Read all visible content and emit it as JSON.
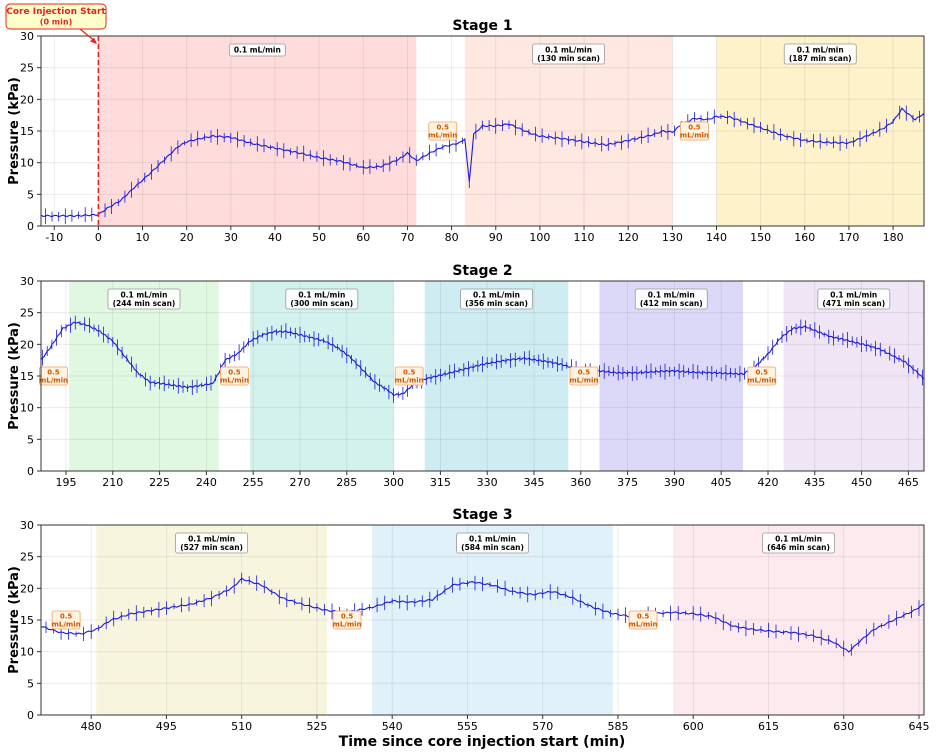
{
  "figure": {
    "xlabel": "Time since core injection start (min)",
    "core_annotation": {
      "line1": "Core Injection Start",
      "line2": "(0 min)",
      "x": 0
    }
  },
  "colors": {
    "trace": "#1a1adb",
    "core_line": "#e8231f",
    "rate_fill": "#fff3e0",
    "rate_text": "#d35400",
    "rate_border": "#f0a060"
  },
  "chart_data": [
    {
      "type": "line",
      "title": "Stage 1",
      "ylabel": "Pressure (kPa)",
      "xlim": [
        -13,
        187
      ],
      "ylim": [
        0,
        30
      ],
      "xticks": [
        -10,
        0,
        10,
        20,
        30,
        40,
        50,
        60,
        70,
        80,
        90,
        100,
        110,
        120,
        130,
        140,
        150,
        160,
        170,
        180
      ],
      "yticks": [
        0,
        5,
        10,
        15,
        20,
        25,
        30
      ],
      "grid": true,
      "regions": [
        {
          "x0": 0,
          "x1": 72,
          "color": "#ffd6d6",
          "label1": "0.1 mL/min",
          "label2": ""
        },
        {
          "x0": 83,
          "x1": 130,
          "color": "#ffe4da",
          "label1": "0.1 mL/min",
          "label2": "(130 min scan)"
        },
        {
          "x0": 140,
          "x1": 187,
          "color": "#fdf0c0",
          "label1": "0.1 mL/min",
          "label2": "(187 min scan)"
        }
      ],
      "rate_labels": [
        {
          "x": 78,
          "y": 15,
          "line1": "0.5",
          "line2": "mL/min"
        },
        {
          "x": 135,
          "y": 15,
          "line1": "0.5",
          "line2": "mL/min"
        }
      ],
      "series": [
        {
          "x": [
            -13,
            -5,
            0,
            2,
            5,
            8,
            12,
            15,
            18,
            20,
            23,
            26,
            30,
            35,
            40,
            45,
            50,
            55,
            60,
            64,
            68,
            70,
            72,
            75,
            78,
            80,
            82,
            83,
            84,
            85,
            87,
            90,
            93,
            95,
            98,
            100,
            105,
            110,
            115,
            120,
            125,
            128,
            130,
            132,
            135,
            138,
            140,
            143,
            147,
            150,
            155,
            160,
            165,
            170,
            175,
            178,
            180,
            182,
            185,
            187
          ],
          "y": [
            1.6,
            1.6,
            1.8,
            2.8,
            4.0,
            6.0,
            8.5,
            10.5,
            12.5,
            13.3,
            13.8,
            14.2,
            14.0,
            13.0,
            12.3,
            11.6,
            10.8,
            10.2,
            9.2,
            9.4,
            10.5,
            11.5,
            10.3,
            11.5,
            12.5,
            12.8,
            13.2,
            13.8,
            7.0,
            14.5,
            15.8,
            15.8,
            16.1,
            15.5,
            14.6,
            14.2,
            13.8,
            13.3,
            12.8,
            13.5,
            14.3,
            15.0,
            14.8,
            16.0,
            17.0,
            16.8,
            17.3,
            17.2,
            16.2,
            15.5,
            14.3,
            13.5,
            13.2,
            13.1,
            14.5,
            15.5,
            16.5,
            18.5,
            16.8,
            17.8
          ]
        }
      ]
    },
    {
      "type": "line",
      "title": "Stage 2",
      "ylabel": "Pressure (kPa)",
      "xlim": [
        187,
        470
      ],
      "ylim": [
        0,
        30
      ],
      "xticks": [
        195,
        210,
        225,
        240,
        255,
        270,
        285,
        300,
        315,
        330,
        345,
        360,
        375,
        390,
        405,
        420,
        435,
        450,
        465
      ],
      "yticks": [
        0,
        5,
        10,
        15,
        20,
        25,
        30
      ],
      "grid": true,
      "regions": [
        {
          "x0": 196,
          "x1": 244,
          "color": "#dbf7dc",
          "label1": "0.1 mL/min",
          "label2": "(244 min scan)"
        },
        {
          "x0": 254,
          "x1": 300,
          "color": "#cdf0ea",
          "label1": "0.1 mL/min",
          "label2": "(300 min scan)"
        },
        {
          "x0": 310,
          "x1": 356,
          "color": "#c5e9ef",
          "label1": "0.1 mL/min",
          "label2": "(356 min scan)"
        },
        {
          "x0": 366,
          "x1": 412,
          "color": "#d6d2f7",
          "label1": "0.1 mL/min",
          "label2": "(412 min scan)"
        },
        {
          "x0": 425,
          "x1": 471,
          "color": "#ece0f3",
          "label1": "0.1 mL/min",
          "label2": "(471 min scan)"
        }
      ],
      "rate_labels": [
        {
          "x": 191,
          "y": 15,
          "line1": "0.5",
          "line2": "mL/min"
        },
        {
          "x": 249,
          "y": 15,
          "line1": "0.5",
          "line2": "mL/min"
        },
        {
          "x": 305,
          "y": 15,
          "line1": "0.5",
          "line2": "mL/min"
        },
        {
          "x": 361,
          "y": 15,
          "line1": "0.5",
          "line2": "mL/min"
        },
        {
          "x": 418,
          "y": 15,
          "line1": "0.5",
          "line2": "mL/min"
        }
      ],
      "series": [
        {
          "x": [
            187,
            190,
            194,
            198,
            202,
            206,
            210,
            214,
            218,
            222,
            226,
            230,
            234,
            238,
            242,
            244,
            246,
            250,
            254,
            258,
            262,
            266,
            270,
            274,
            278,
            282,
            286,
            290,
            294,
            298,
            300,
            303,
            306,
            310,
            314,
            318,
            322,
            326,
            330,
            334,
            338,
            342,
            346,
            350,
            354,
            356,
            360,
            366,
            372,
            378,
            384,
            390,
            396,
            402,
            408,
            412,
            416,
            420,
            424,
            428,
            432,
            436,
            440,
            444,
            448,
            452,
            456,
            460,
            464,
            468,
            470
          ],
          "y": [
            17.5,
            19.5,
            22.5,
            23.5,
            23.0,
            22.0,
            20.5,
            18.0,
            15.5,
            14.0,
            13.8,
            13.5,
            13.2,
            13.5,
            13.8,
            15.5,
            17.5,
            18.5,
            20.5,
            21.5,
            22.0,
            22.0,
            21.5,
            21.0,
            20.5,
            19.5,
            18.0,
            16.0,
            14.0,
            12.8,
            12.0,
            12.2,
            13.5,
            14.5,
            15.0,
            15.5,
            16.0,
            16.5,
            17.0,
            17.3,
            17.6,
            17.8,
            17.5,
            17.2,
            16.8,
            16.5,
            16.0,
            15.8,
            15.5,
            15.5,
            15.7,
            15.8,
            15.6,
            15.5,
            15.4,
            15.3,
            16.5,
            18.5,
            21.0,
            22.5,
            22.8,
            22.0,
            21.2,
            20.8,
            20.3,
            19.8,
            19.2,
            18.2,
            17.2,
            15.5,
            14.5
          ]
        }
      ]
    },
    {
      "type": "line",
      "title": "Stage 3",
      "ylabel": "Pressure (kPa)",
      "xlim": [
        470,
        646
      ],
      "ylim": [
        0,
        30
      ],
      "xticks": [
        480,
        495,
        510,
        525,
        540,
        555,
        570,
        585,
        600,
        615,
        630,
        645
      ],
      "yticks": [
        0,
        5,
        10,
        15,
        20,
        25,
        30
      ],
      "grid": true,
      "regions": [
        {
          "x0": 481,
          "x1": 527,
          "color": "#f7f3d8",
          "label1": "0.1 mL/min",
          "label2": "(527 min scan)"
        },
        {
          "x0": 536,
          "x1": 584,
          "color": "#dbeff8",
          "label1": "0.1 mL/min",
          "label2": "(584 min scan)"
        },
        {
          "x0": 596,
          "x1": 646,
          "color": "#fde6ec",
          "label1": "0.1 mL/min",
          "label2": "(646 min scan)"
        }
      ],
      "rate_labels": [
        {
          "x": 475,
          "y": 15,
          "line1": "0.5",
          "line2": "mL/min"
        },
        {
          "x": 531,
          "y": 15,
          "line1": "0.5",
          "line2": "mL/min"
        },
        {
          "x": 590,
          "y": 15,
          "line1": "0.5",
          "line2": "mL/min"
        }
      ],
      "series": [
        {
          "x": [
            470,
            474,
            478,
            481,
            484,
            488,
            492,
            496,
            500,
            504,
            508,
            510,
            514,
            518,
            522,
            527,
            531,
            536,
            540,
            544,
            548,
            552,
            556,
            560,
            564,
            568,
            572,
            576,
            580,
            584,
            588,
            592,
            596,
            600,
            604,
            608,
            612,
            616,
            620,
            624,
            628,
            631,
            633,
            636,
            640,
            644,
            646
          ],
          "y": [
            14.0,
            13.0,
            12.8,
            13.5,
            15.0,
            16.0,
            16.5,
            17.0,
            17.5,
            18.5,
            20.0,
            21.5,
            20.5,
            18.5,
            17.5,
            16.5,
            16.2,
            17.0,
            18.0,
            17.8,
            18.2,
            20.5,
            21.0,
            20.5,
            19.5,
            19.0,
            19.5,
            18.5,
            17.0,
            16.0,
            15.5,
            16.0,
            16.2,
            16.0,
            15.5,
            14.0,
            13.5,
            13.2,
            13.0,
            12.5,
            11.5,
            10.0,
            11.5,
            13.5,
            15.0,
            16.5,
            17.5
          ]
        }
      ]
    }
  ]
}
